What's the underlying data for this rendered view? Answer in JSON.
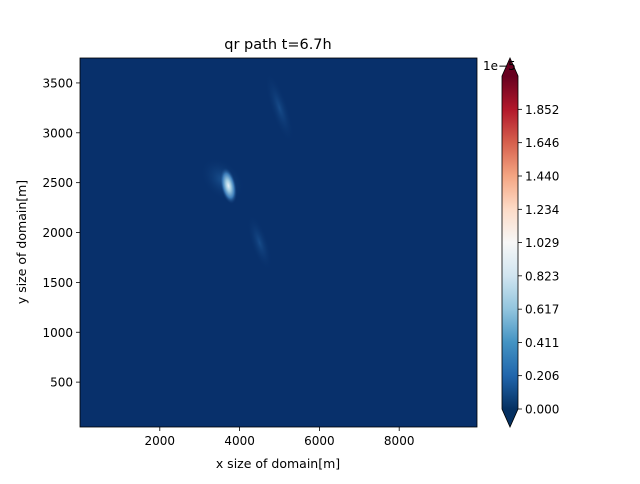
{
  "chart_data": {
    "type": "heatmap",
    "title": "qr path t=6.7h",
    "xlabel": "x size of domain[m]",
    "ylabel": "y size of domain[m]",
    "xlim": [
      0,
      9950
    ],
    "ylim": [
      50,
      3750
    ],
    "x_ticks": [
      2000,
      4000,
      6000,
      8000
    ],
    "y_ticks": [
      500,
      1000,
      1500,
      2000,
      2500,
      3000,
      3500
    ],
    "colormap": "RdBu_r",
    "colorbar": {
      "ticks": [
        "0.000",
        "0.206",
        "0.411",
        "0.617",
        "0.823",
        "1.029",
        "1.234",
        "1.440",
        "1.646",
        "1.852"
      ],
      "tick_values": [
        0.0,
        0.206,
        0.411,
        0.617,
        0.823,
        1.029,
        1.234,
        1.44,
        1.646,
        1.852
      ],
      "range": [
        0,
        2.058
      ],
      "exponent_label": "1e−5",
      "extend": "both"
    },
    "features": [
      {
        "name": "main blob",
        "x": 3720,
        "y": 2470,
        "peak": 0.9
      },
      {
        "name": "faint streak north",
        "x": 5000,
        "y": 3250,
        "peak": 0.15
      },
      {
        "name": "faint streak south",
        "x": 4500,
        "y": 1900,
        "peak": 0.1
      }
    ],
    "grid": false
  },
  "colors": {
    "background": "#08306b",
    "low": "#053061",
    "high": "#67001f"
  }
}
